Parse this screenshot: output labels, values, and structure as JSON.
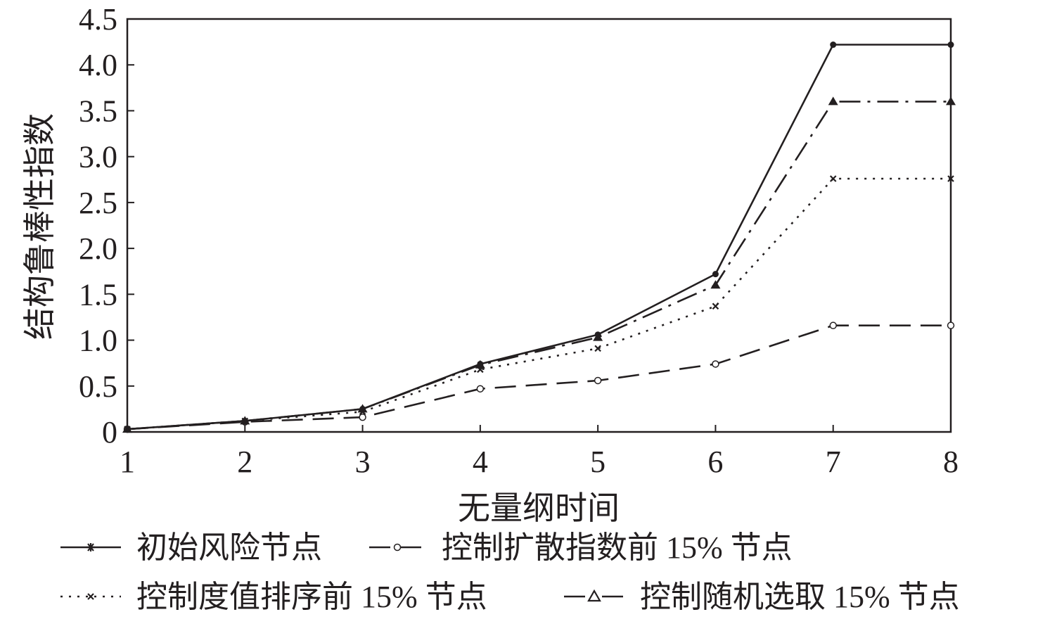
{
  "chart_data": {
    "type": "line",
    "title": "",
    "xlabel": "无量纲时间",
    "ylabel": "结构鲁棒性指数",
    "x": [
      1,
      2,
      3,
      4,
      5,
      6,
      7,
      8
    ],
    "xticks": [
      "1",
      "2",
      "3",
      "4",
      "5",
      "6",
      "7",
      "8"
    ],
    "yticks": [
      "0",
      "0.5",
      "1.0",
      "1.5",
      "2.0",
      "2.5",
      "3.0",
      "3.5",
      "4.0",
      "4.5"
    ],
    "xlim": [
      1,
      8
    ],
    "ylim": [
      0,
      4.5
    ],
    "grid": false,
    "legend_position": "bottom",
    "series": [
      {
        "name": "初始风险节点",
        "values": [
          0.03,
          0.12,
          0.25,
          0.74,
          1.06,
          1.72,
          4.22,
          4.22
        ],
        "line_style": "solid",
        "marker": "filled-circle",
        "legend_marker": "asterisk"
      },
      {
        "name": "控制扩散指数前 15% 节点",
        "values": [
          0.03,
          0.11,
          0.16,
          0.47,
          0.56,
          0.74,
          1.16,
          1.16
        ],
        "line_style": "long-dash",
        "marker": "open-circle",
        "legend_marker": "open-circle"
      },
      {
        "name": "控制度值排序前 15% 节点",
        "values": [
          0.03,
          0.12,
          0.22,
          0.68,
          0.91,
          1.37,
          2.76,
          2.76
        ],
        "line_style": "dotted",
        "marker": "x",
        "legend_marker": "x"
      },
      {
        "name": "控制随机选取 15% 节点",
        "values": [
          0.03,
          0.12,
          0.25,
          0.73,
          1.03,
          1.6,
          3.6,
          3.6
        ],
        "line_style": "dash-dot",
        "marker": "filled-triangle",
        "legend_marker": "open-triangle"
      }
    ]
  }
}
